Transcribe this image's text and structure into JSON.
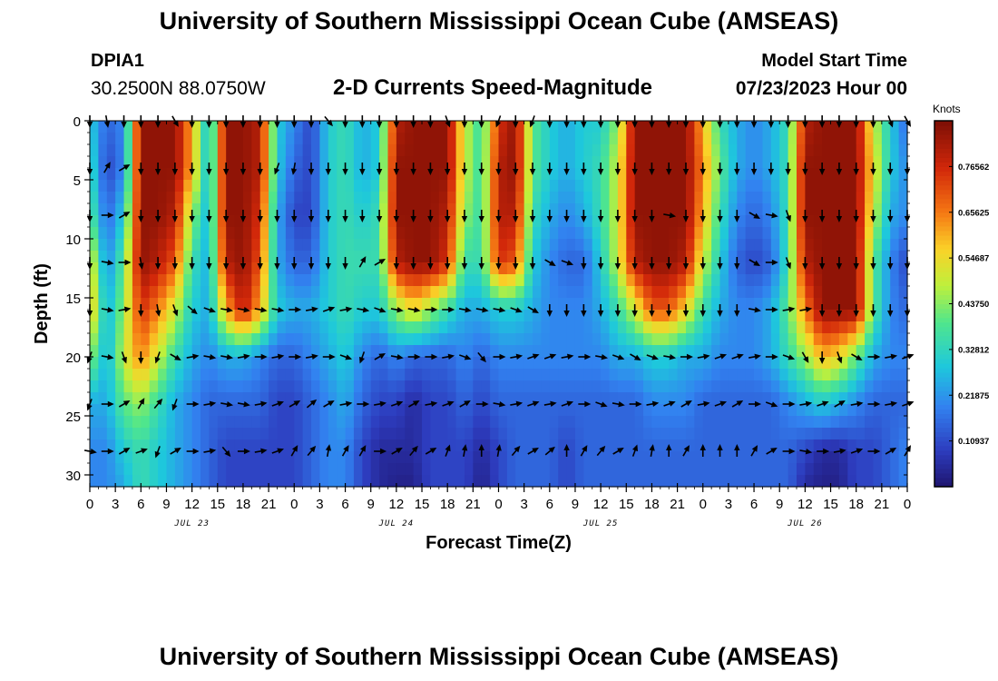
{
  "header": {
    "title": "University of Southern Mississippi Ocean Cube (AMSEAS)",
    "station": "DPIA1",
    "coordinates": "30.2500N  88.0750W",
    "subtitle": "2-D Currents Speed-Magnitude",
    "model_start_label": "Model Start Time",
    "model_start_value": "07/23/2023 Hour 00"
  },
  "footer": {
    "title": "University of Southern Mississippi Ocean Cube (AMSEAS)"
  },
  "chart_data": {
    "type": "heatmap",
    "title": "2-D Currents Speed-Magnitude",
    "xlabel": "Forecast Time(Z)",
    "ylabel": "Depth (ft)",
    "x_ticks": [
      "0",
      "3",
      "6",
      "9",
      "12",
      "15",
      "18",
      "21",
      "0",
      "3",
      "6",
      "9",
      "12",
      "15",
      "18",
      "21",
      "0",
      "3",
      "6",
      "9",
      "12",
      "15",
      "18",
      "21",
      "0",
      "3",
      "6",
      "9",
      "12",
      "15",
      "18",
      "21",
      "0"
    ],
    "day_labels": [
      {
        "label": "JUL 23",
        "hour": 12
      },
      {
        "label": "JUL 24",
        "hour": 36
      },
      {
        "label": "JUL 25",
        "hour": 60
      },
      {
        "label": "JUL 26",
        "hour": 84
      }
    ],
    "xlim": [
      0,
      96
    ],
    "y_ticks": [
      0,
      5,
      10,
      15,
      20,
      25,
      30
    ],
    "ylim": [
      0,
      31
    ],
    "colorbar": {
      "units": "Knots",
      "ticks": [
        "0.10937",
        "0.21875",
        "0.32812",
        "0.43750",
        "0.54687",
        "0.65625",
        "0.76562"
      ],
      "range": [
        0,
        0.875
      ]
    },
    "depths_ft": [
      0,
      4,
      8,
      12,
      16,
      20,
      24,
      28,
      31
    ],
    "times_hr": [
      0,
      2,
      4,
      6,
      8,
      10,
      12,
      14,
      16,
      18,
      20,
      22,
      24,
      26,
      28,
      30,
      32,
      34,
      36,
      38,
      40,
      42,
      44,
      46,
      48,
      50,
      52,
      54,
      56,
      58,
      60,
      62,
      64,
      66,
      68,
      70,
      72,
      74,
      76,
      78,
      80,
      82,
      84,
      86,
      88,
      90,
      92,
      94,
      96
    ],
    "speed_knots": [
      [
        0.3,
        0.15,
        0.2,
        0.85,
        0.85,
        0.85,
        0.6,
        0.25,
        0.85,
        0.85,
        0.8,
        0.3,
        0.2,
        0.1,
        0.3,
        0.35,
        0.25,
        0.3,
        0.8,
        0.85,
        0.85,
        0.85,
        0.5,
        0.35,
        0.75,
        0.85,
        0.4,
        0.3,
        0.25,
        0.3,
        0.3,
        0.45,
        0.85,
        0.85,
        0.85,
        0.85,
        0.6,
        0.35,
        0.25,
        0.2,
        0.25,
        0.35,
        0.8,
        0.85,
        0.85,
        0.85,
        0.5,
        0.3,
        0.15
      ],
      [
        0.35,
        0.1,
        0.2,
        0.85,
        0.85,
        0.85,
        0.6,
        0.25,
        0.85,
        0.85,
        0.8,
        0.3,
        0.15,
        0.1,
        0.3,
        0.35,
        0.25,
        0.3,
        0.85,
        0.85,
        0.85,
        0.85,
        0.5,
        0.35,
        0.8,
        0.85,
        0.4,
        0.3,
        0.25,
        0.3,
        0.35,
        0.5,
        0.85,
        0.85,
        0.85,
        0.85,
        0.65,
        0.4,
        0.25,
        0.2,
        0.25,
        0.35,
        0.85,
        0.85,
        0.85,
        0.85,
        0.55,
        0.3,
        0.2
      ],
      [
        0.4,
        0.15,
        0.3,
        0.85,
        0.85,
        0.8,
        0.45,
        0.25,
        0.85,
        0.85,
        0.75,
        0.25,
        0.1,
        0.1,
        0.3,
        0.35,
        0.3,
        0.35,
        0.85,
        0.85,
        0.85,
        0.8,
        0.45,
        0.35,
        0.8,
        0.8,
        0.35,
        0.25,
        0.2,
        0.25,
        0.35,
        0.5,
        0.85,
        0.85,
        0.85,
        0.85,
        0.6,
        0.35,
        0.2,
        0.15,
        0.2,
        0.35,
        0.85,
        0.85,
        0.85,
        0.85,
        0.5,
        0.25,
        0.2
      ],
      [
        0.55,
        0.2,
        0.4,
        0.85,
        0.8,
        0.7,
        0.35,
        0.25,
        0.8,
        0.85,
        0.7,
        0.25,
        0.15,
        0.15,
        0.3,
        0.35,
        0.35,
        0.35,
        0.8,
        0.85,
        0.85,
        0.75,
        0.35,
        0.35,
        0.75,
        0.7,
        0.3,
        0.2,
        0.15,
        0.15,
        0.3,
        0.5,
        0.8,
        0.85,
        0.85,
        0.8,
        0.5,
        0.3,
        0.15,
        0.1,
        0.15,
        0.35,
        0.8,
        0.85,
        0.85,
        0.85,
        0.4,
        0.2,
        0.1
      ],
      [
        0.6,
        0.25,
        0.45,
        0.75,
        0.65,
        0.5,
        0.3,
        0.25,
        0.6,
        0.8,
        0.6,
        0.3,
        0.25,
        0.25,
        0.3,
        0.35,
        0.3,
        0.3,
        0.45,
        0.55,
        0.45,
        0.35,
        0.25,
        0.25,
        0.3,
        0.3,
        0.25,
        0.2,
        0.2,
        0.2,
        0.25,
        0.35,
        0.5,
        0.7,
        0.7,
        0.55,
        0.35,
        0.25,
        0.2,
        0.2,
        0.25,
        0.4,
        0.65,
        0.85,
        0.85,
        0.85,
        0.4,
        0.2,
        0.15
      ],
      [
        0.45,
        0.25,
        0.5,
        0.65,
        0.5,
        0.35,
        0.25,
        0.2,
        0.25,
        0.25,
        0.2,
        0.15,
        0.15,
        0.2,
        0.25,
        0.3,
        0.2,
        0.15,
        0.2,
        0.15,
        0.15,
        0.15,
        0.2,
        0.15,
        0.2,
        0.2,
        0.2,
        0.2,
        0.2,
        0.2,
        0.2,
        0.25,
        0.25,
        0.3,
        0.3,
        0.25,
        0.25,
        0.2,
        0.2,
        0.2,
        0.25,
        0.35,
        0.45,
        0.6,
        0.55,
        0.4,
        0.25,
        0.2,
        0.2
      ],
      [
        0.25,
        0.25,
        0.4,
        0.45,
        0.35,
        0.25,
        0.2,
        0.15,
        0.15,
        0.15,
        0.15,
        0.1,
        0.1,
        0.15,
        0.2,
        0.25,
        0.15,
        0.1,
        0.1,
        0.05,
        0.1,
        0.1,
        0.15,
        0.1,
        0.15,
        0.15,
        0.15,
        0.15,
        0.15,
        0.15,
        0.15,
        0.15,
        0.15,
        0.2,
        0.2,
        0.2,
        0.15,
        0.15,
        0.15,
        0.15,
        0.15,
        0.2,
        0.25,
        0.3,
        0.25,
        0.2,
        0.15,
        0.15,
        0.15
      ],
      [
        0.2,
        0.2,
        0.3,
        0.35,
        0.3,
        0.25,
        0.2,
        0.15,
        0.1,
        0.1,
        0.1,
        0.1,
        0.1,
        0.15,
        0.2,
        0.2,
        0.1,
        0.05,
        0.05,
        0.05,
        0.1,
        0.1,
        0.1,
        0.05,
        0.1,
        0.15,
        0.15,
        0.15,
        0.1,
        0.15,
        0.15,
        0.15,
        0.15,
        0.15,
        0.15,
        0.15,
        0.15,
        0.15,
        0.15,
        0.15,
        0.15,
        0.15,
        0.1,
        0.05,
        0.05,
        0.1,
        0.1,
        0.15,
        0.2
      ],
      [
        0.2,
        0.2,
        0.25,
        0.35,
        0.3,
        0.25,
        0.2,
        0.15,
        0.1,
        0.1,
        0.1,
        0.1,
        0.1,
        0.15,
        0.2,
        0.2,
        0.1,
        0.05,
        0.03,
        0.03,
        0.1,
        0.1,
        0.1,
        0.03,
        0.1,
        0.15,
        0.15,
        0.15,
        0.1,
        0.15,
        0.15,
        0.15,
        0.15,
        0.15,
        0.15,
        0.15,
        0.15,
        0.15,
        0.15,
        0.15,
        0.15,
        0.15,
        0.05,
        0.03,
        0.03,
        0.1,
        0.1,
        0.15,
        0.2
      ]
    ],
    "vector_depths_ft": [
      0,
      4,
      8,
      12,
      16,
      20,
      24,
      28
    ],
    "vector_dirs_deg": [
      [
        180,
        170,
        180,
        180,
        180,
        150,
        180,
        180,
        180,
        180,
        180,
        180,
        180,
        180,
        140,
        180,
        180,
        180,
        180,
        180,
        180,
        160,
        180,
        180,
        200,
        180,
        200,
        180,
        180,
        180,
        180,
        180,
        180,
        180,
        180,
        180,
        180,
        180,
        180,
        180,
        180,
        180,
        180,
        180,
        180,
        180,
        180,
        160,
        150
      ],
      [
        180,
        30,
        60,
        180,
        180,
        180,
        180,
        180,
        180,
        180,
        180,
        200,
        190,
        180,
        180,
        180,
        180,
        180,
        180,
        180,
        180,
        180,
        180,
        180,
        180,
        180,
        180,
        180,
        180,
        180,
        180,
        180,
        180,
        180,
        180,
        180,
        180,
        180,
        180,
        180,
        180,
        180,
        180,
        180,
        180,
        180,
        180,
        180,
        180
      ],
      [
        180,
        90,
        60,
        180,
        180,
        180,
        180,
        180,
        180,
        180,
        180,
        180,
        180,
        180,
        180,
        180,
        180,
        180,
        180,
        180,
        180,
        180,
        180,
        180,
        180,
        180,
        180,
        180,
        180,
        180,
        180,
        180,
        180,
        180,
        100,
        180,
        180,
        180,
        180,
        120,
        100,
        160,
        180,
        180,
        180,
        180,
        180,
        180,
        180
      ],
      [
        180,
        100,
        90,
        170,
        180,
        180,
        180,
        180,
        180,
        180,
        180,
        180,
        180,
        180,
        180,
        180,
        30,
        60,
        180,
        180,
        180,
        180,
        180,
        180,
        180,
        180,
        180,
        120,
        110,
        180,
        180,
        180,
        180,
        180,
        180,
        180,
        180,
        180,
        180,
        120,
        90,
        160,
        180,
        180,
        180,
        180,
        180,
        180,
        180
      ],
      [
        180,
        100,
        80,
        180,
        170,
        160,
        130,
        110,
        100,
        100,
        100,
        100,
        90,
        80,
        70,
        80,
        100,
        110,
        100,
        100,
        90,
        90,
        100,
        100,
        100,
        110,
        120,
        180,
        180,
        180,
        180,
        180,
        180,
        180,
        180,
        180,
        180,
        180,
        180,
        100,
        90,
        80,
        80,
        180,
        180,
        180,
        180,
        180,
        180
      ],
      [
        200,
        100,
        160,
        180,
        200,
        120,
        80,
        100,
        100,
        80,
        90,
        80,
        90,
        80,
        90,
        110,
        200,
        60,
        100,
        90,
        90,
        80,
        110,
        140,
        90,
        80,
        70,
        70,
        80,
        90,
        100,
        110,
        120,
        110,
        100,
        90,
        80,
        70,
        70,
        80,
        90,
        110,
        150,
        180,
        160,
        120,
        90,
        80,
        70
      ],
      [
        200,
        90,
        60,
        30,
        40,
        200,
        90,
        80,
        100,
        100,
        80,
        70,
        60,
        50,
        60,
        80,
        90,
        80,
        70,
        60,
        80,
        70,
        60,
        90,
        100,
        80,
        70,
        80,
        70,
        90,
        110,
        100,
        90,
        80,
        70,
        60,
        80,
        70,
        60,
        90,
        110,
        90,
        80,
        70,
        60,
        80,
        90,
        80,
        70
      ],
      [
        100,
        90,
        60,
        70,
        200,
        60,
        90,
        80,
        140,
        90,
        80,
        70,
        30,
        40,
        10,
        30,
        30,
        90,
        60,
        40,
        60,
        20,
        10,
        0,
        10,
        40,
        60,
        50,
        0,
        30,
        40,
        60,
        20,
        10,
        0,
        30,
        0,
        0,
        0,
        30,
        60,
        90,
        100,
        90,
        80,
        70,
        90,
        60,
        30
      ]
    ]
  }
}
